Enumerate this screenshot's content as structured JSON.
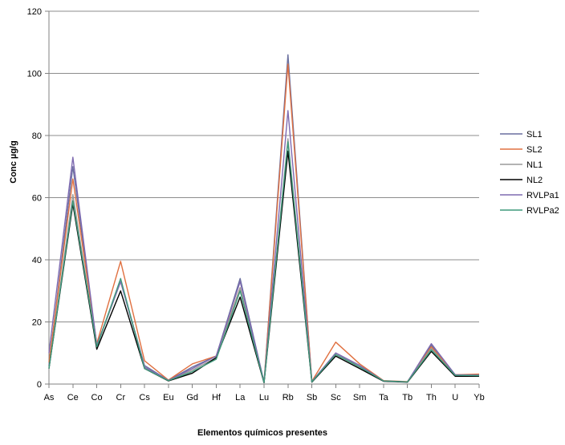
{
  "chart_data": {
    "type": "line",
    "xlabel": "Elementos químicos presentes",
    "ylabel": "Conc µg/g",
    "ylim": [
      0,
      120
    ],
    "yticks": [
      0,
      20,
      40,
      60,
      80,
      100,
      120
    ],
    "grid": true,
    "legend_position": "right",
    "categories": [
      "As",
      "Ce",
      "Co",
      "Cr",
      "Cs",
      "Eu",
      "Gd",
      "Hf",
      "La",
      "Lu",
      "Rb",
      "Sb",
      "Sc",
      "Sm",
      "Ta",
      "Tb",
      "Th",
      "U",
      "Yb"
    ],
    "series": [
      {
        "name": "SL1",
        "color": "#6a6f9f",
        "values": [
          6,
          70,
          12.5,
          33,
          6,
          1.2,
          5.5,
          9,
          34,
          0.6,
          106,
          0.8,
          10,
          6,
          1,
          0.7,
          12.5,
          3,
          3
        ]
      },
      {
        "name": "SL2",
        "color": "#e07040",
        "values": [
          7,
          66,
          13,
          39.5,
          7.5,
          1.3,
          6.5,
          9,
          31,
          0.6,
          103,
          0.9,
          13.5,
          6.5,
          1.1,
          0.8,
          12,
          3,
          3.2
        ]
      },
      {
        "name": "NL1",
        "color": "#9a9a9a",
        "values": [
          5,
          61,
          12,
          33,
          5.5,
          1.1,
          4.5,
          8.5,
          31,
          0.5,
          79,
          0.7,
          10,
          5.5,
          1,
          0.7,
          11.5,
          2.7,
          2.8
        ]
      },
      {
        "name": "NL2",
        "color": "#000000",
        "values": [
          5,
          58,
          11.2,
          30,
          5,
          1,
          3.5,
          8.5,
          28,
          0.4,
          75,
          0.6,
          9,
          5,
          0.9,
          0.6,
          10.5,
          2.5,
          2.5
        ]
      },
      {
        "name": "RVLPa1",
        "color": "#7e6ab0",
        "values": [
          10,
          73,
          12.5,
          33,
          5.5,
          1.2,
          5,
          9,
          33,
          0.6,
          88,
          0.8,
          10,
          6,
          1,
          0.7,
          13,
          3,
          2.9
        ]
      },
      {
        "name": "RVLPa2",
        "color": "#3f9a7c",
        "values": [
          5,
          59,
          12,
          34,
          5,
          1.1,
          4,
          8,
          30,
          0.5,
          78,
          0.7,
          9.5,
          5.5,
          1,
          0.7,
          11,
          2.8,
          2.7
        ]
      }
    ]
  }
}
